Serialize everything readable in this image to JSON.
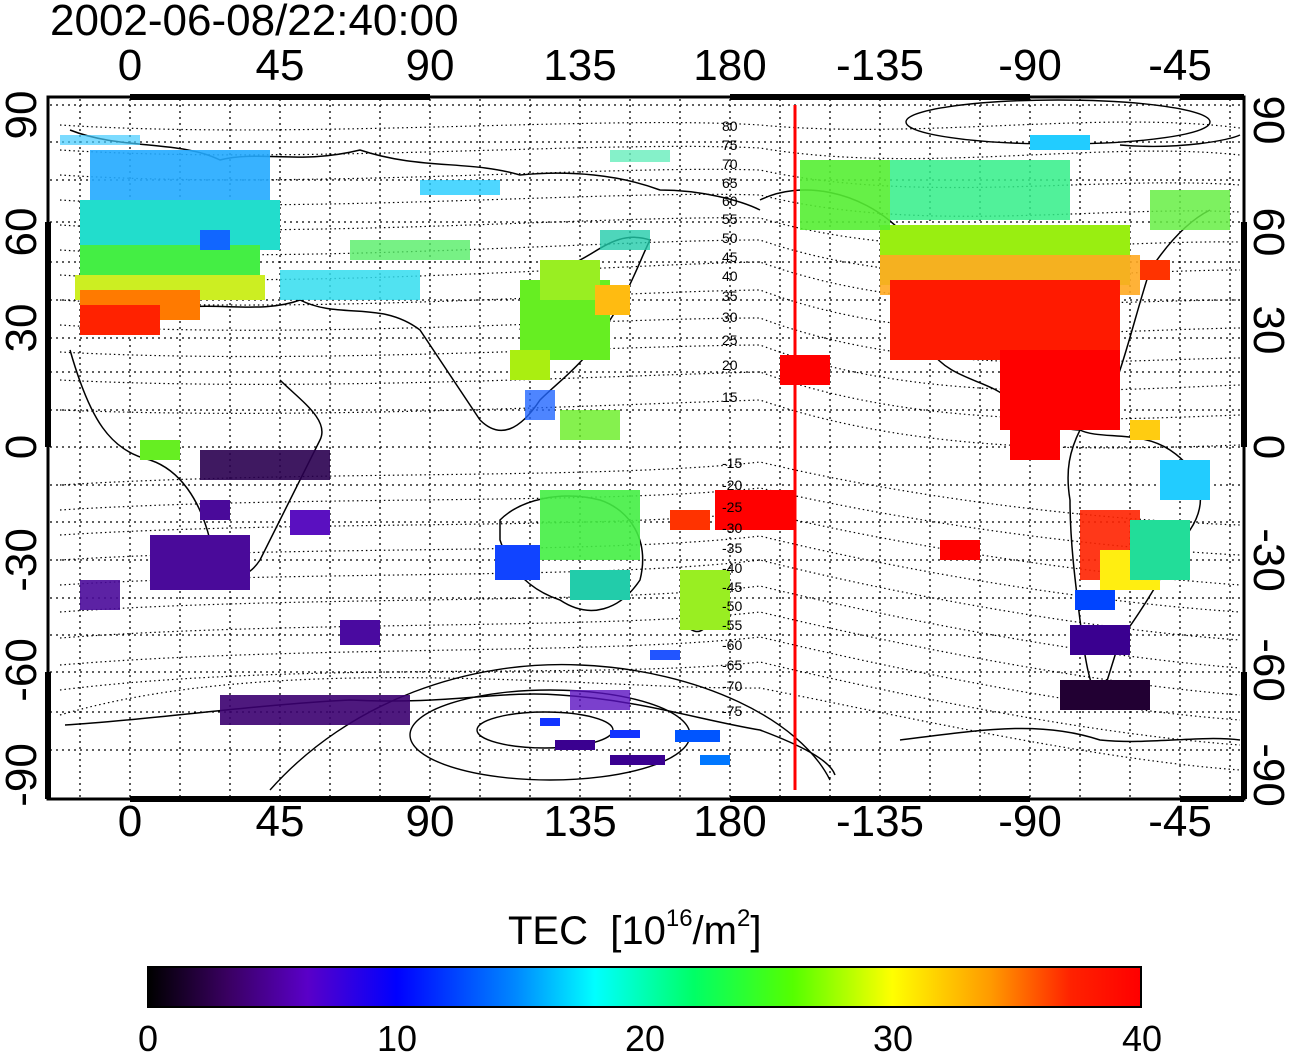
{
  "title": "2002-06-08/22:40:00",
  "axes": {
    "lon_ticks": [
      "0",
      "45",
      "90",
      "135",
      "180",
      "-135",
      "-90",
      "-45"
    ],
    "lat_ticks": [
      "90",
      "60",
      "30",
      "0",
      "-30",
      "-60",
      "-90"
    ]
  },
  "contour_labels": [
    "80",
    "75",
    "70",
    "65",
    "60",
    "55",
    "50",
    "45",
    "40",
    "35",
    "30",
    "25",
    "20",
    "15",
    "-15",
    "-20",
    "-25",
    "-30",
    "-35",
    "-40",
    "-45",
    "-50",
    "-55",
    "-60",
    "-65",
    "-70",
    "-75"
  ],
  "colorbar": {
    "label": "TEC",
    "unit_base": "[10",
    "unit_exp": "16",
    "unit_mid": "/m",
    "unit_exp2": "2",
    "unit_end": "]",
    "ticks": [
      "0",
      "10",
      "20",
      "30",
      "40"
    ]
  },
  "colors": {
    "terminator": "#ff0000",
    "frame": "#000000"
  }
}
